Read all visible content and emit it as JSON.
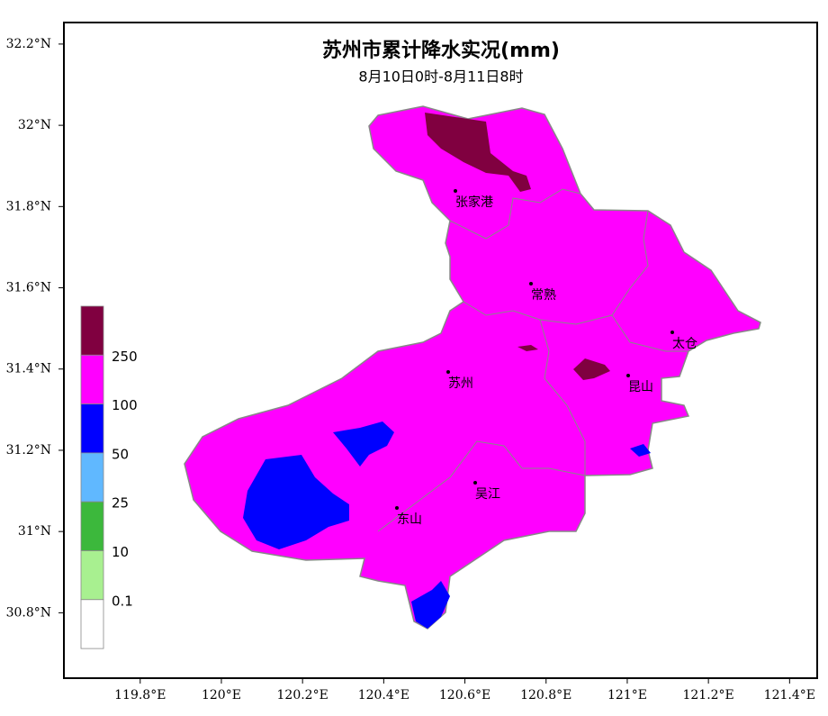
{
  "title": "苏州市累计降水实况(mm)",
  "subtitle": "8月10日0时-8月11日8时",
  "map": {
    "xlim": [
      119.612,
      121.468
    ],
    "ylim": [
      30.639,
      32.253
    ],
    "xticks": [
      {
        "value": 119.8,
        "label": "119.8°E"
      },
      {
        "value": 120,
        "label": "120°E"
      },
      {
        "value": 120.2,
        "label": "120.2°E"
      },
      {
        "value": 120.4,
        "label": "120.4°E"
      },
      {
        "value": 120.6,
        "label": "120.6°E"
      },
      {
        "value": 120.8,
        "label": "120.8°E"
      },
      {
        "value": 121,
        "label": "121°E"
      },
      {
        "value": 121.2,
        "label": "121.2°E"
      },
      {
        "value": 121.4,
        "label": "121.4°E"
      }
    ],
    "yticks": [
      {
        "value": 32.2,
        "label": "32.2°N"
      },
      {
        "value": 32,
        "label": "32°N"
      },
      {
        "value": 31.8,
        "label": "31.8°N"
      },
      {
        "value": 31.6,
        "label": "31.6°N"
      },
      {
        "value": 31.4,
        "label": "31.4°N"
      },
      {
        "value": 31.2,
        "label": "31.2°N"
      },
      {
        "value": 31,
        "label": "31°N"
      },
      {
        "value": 30.8,
        "label": "30.8°N"
      }
    ]
  },
  "cities": [
    "张家港",
    "常熟",
    "太仓",
    "苏州",
    "昆山",
    "吴江",
    "东山"
  ],
  "legend": {
    "labels": [
      "250",
      "100",
      "50",
      "25",
      "10",
      "0.1"
    ],
    "colors": [
      "#800040",
      "#ff00ff",
      "#0000ff",
      "#60b8ff",
      "#3cb83c",
      "#a8f090",
      "#ffffff"
    ]
  }
}
